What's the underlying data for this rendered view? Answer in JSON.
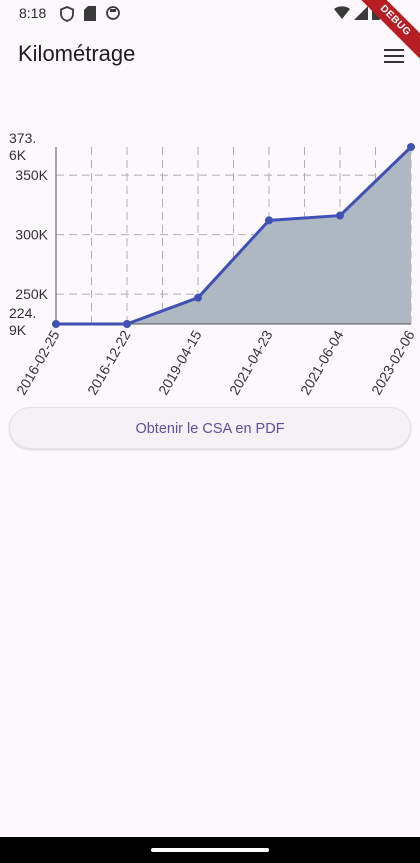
{
  "status": {
    "time": "8:18",
    "left_icons": [
      "shield-icon",
      "sd-card-icon",
      "app-icon"
    ],
    "right_icons": [
      "wifi-icon",
      "signal-icon",
      "battery-icon"
    ]
  },
  "debug_banner": "DEBUG",
  "app_bar": {
    "title": "Kilométrage",
    "menu_icon": "menu-icon"
  },
  "pdf_button_label": "Obtenir le CSA en PDF",
  "colors": {
    "background": "#fdf7fe",
    "line": "#3f51b5",
    "area": "#aeb8c2",
    "grid": "#b0b0b0",
    "button_text": "#5f4ea1"
  },
  "chart_data": {
    "type": "area",
    "x": [
      "2016-02-25",
      "2016-12-22",
      "2019-04-15",
      "2021-04-23",
      "2021-06-04",
      "2023-02-06"
    ],
    "series": [
      {
        "values": [
          224900,
          224900,
          247000,
          312000,
          316000,
          373600
        ]
      }
    ],
    "y_ticks": [
      "224.\n9K",
      "250K",
      "300K",
      "350K",
      "373.\n6K"
    ],
    "ylim": [
      224900,
      373600
    ],
    "grid": true
  }
}
